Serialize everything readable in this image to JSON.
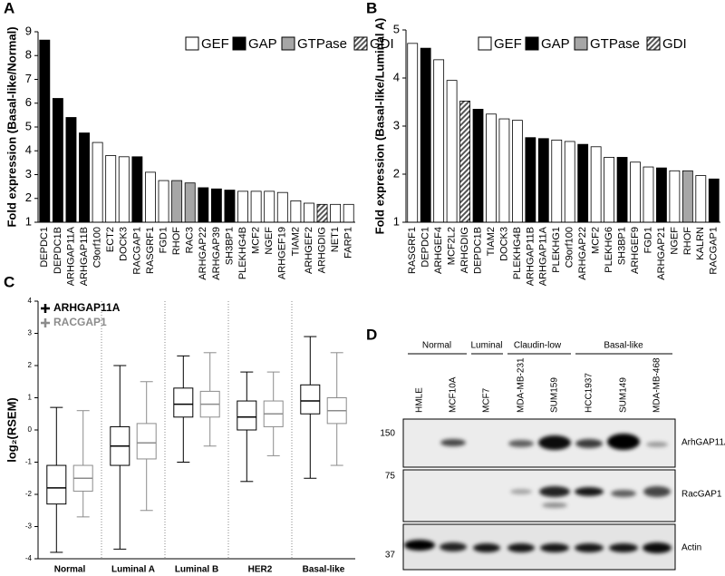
{
  "panel_labels": [
    "A",
    "B",
    "C",
    "D"
  ],
  "chart_data": [
    {
      "type": "bar",
      "ylabel": "Fold expression (Basal-like/Normal)",
      "ylim": [
        1,
        9
      ],
      "yticks": [
        1,
        2,
        3,
        4,
        5,
        6,
        7,
        8,
        9
      ],
      "grid": false,
      "categories": [
        "DEPDC1",
        "DEPDC1B",
        "ARHGAP11A",
        "ARHGAP11B",
        "C9orf100",
        "ECT2",
        "DOCK3",
        "RACGAP1",
        "RASGRF1",
        "FGD1",
        "RHOF",
        "RAC3",
        "ARHGAP22",
        "ARHGAP39",
        "SH3BP1",
        "PLEKHG4B",
        "MCF2",
        "NGEF",
        "ARHGEF19",
        "TIAM2",
        "ARHGEF2",
        "ARHGDIG",
        "NET1",
        "FARP1"
      ],
      "series": [
        {
          "name": "GEF",
          "color": "#ffffff",
          "values": [
            null,
            null,
            null,
            null,
            4.35,
            3.8,
            3.75,
            null,
            3.1,
            2.75,
            null,
            null,
            null,
            null,
            null,
            2.3,
            2.3,
            2.3,
            2.25,
            1.9,
            1.8,
            null,
            1.75,
            1.75
          ]
        },
        {
          "name": "GAP",
          "color": "#000000",
          "values": [
            8.65,
            6.2,
            5.4,
            4.75,
            null,
            null,
            null,
            3.75,
            null,
            null,
            null,
            null,
            2.45,
            2.4,
            2.35,
            null,
            null,
            null,
            null,
            null,
            null,
            null,
            null,
            null
          ]
        },
        {
          "name": "GTPase",
          "color": "#a6a6a6",
          "values": [
            null,
            null,
            null,
            null,
            null,
            null,
            null,
            null,
            null,
            null,
            2.75,
            2.65,
            null,
            null,
            null,
            null,
            null,
            null,
            null,
            null,
            null,
            null,
            null,
            null
          ]
        },
        {
          "name": "GDI",
          "color": "#555555",
          "pattern": "hatch",
          "values": [
            null,
            null,
            null,
            null,
            null,
            null,
            null,
            null,
            null,
            null,
            null,
            null,
            null,
            null,
            null,
            null,
            null,
            null,
            null,
            null,
            null,
            1.75,
            null,
            null
          ]
        }
      ]
    },
    {
      "type": "bar",
      "ylabel": "Fold expression (Basal-like/Luminal A)",
      "ylim": [
        1,
        5
      ],
      "yticks": [
        1,
        2,
        3,
        4,
        5
      ],
      "grid": false,
      "categories": [
        "RASGRF1",
        "DEPDC1",
        "ARHGEF4",
        "MCF2L2",
        "ARHGDIG",
        "DEPDC1B",
        "TIAM2",
        "DOCK3",
        "PLEKHG4B",
        "ARHGAP11B",
        "ARHGAP11A",
        "PLEKHG1",
        "C9orf100",
        "ARHGAP22",
        "MCF2",
        "PLEKHG6",
        "SH3BP1",
        "ARHGEF9",
        "FGD1",
        "ARHGAP21",
        "NGEF",
        "RHOF",
        "KALRN",
        "RACGAP1"
      ],
      "series": [
        {
          "name": "GEF",
          "color": "#ffffff",
          "values": [
            4.72,
            null,
            4.38,
            3.95,
            null,
            null,
            3.25,
            3.15,
            3.12,
            null,
            null,
            2.71,
            2.68,
            null,
            2.57,
            2.35,
            null,
            2.25,
            2.15,
            null,
            2.07,
            null,
            1.97,
            null
          ]
        },
        {
          "name": "GAP",
          "color": "#000000",
          "values": [
            null,
            4.62,
            null,
            null,
            null,
            3.35,
            null,
            null,
            null,
            2.76,
            2.74,
            null,
            null,
            2.62,
            null,
            null,
            2.35,
            null,
            null,
            2.13,
            null,
            null,
            null,
            1.9
          ]
        },
        {
          "name": "GTPase",
          "color": "#a6a6a6",
          "values": [
            null,
            null,
            null,
            null,
            null,
            null,
            null,
            null,
            null,
            null,
            null,
            null,
            null,
            null,
            null,
            null,
            null,
            null,
            null,
            null,
            null,
            2.07,
            null,
            null
          ]
        },
        {
          "name": "GDI",
          "color": "#555555",
          "pattern": "hatch",
          "values": [
            null,
            null,
            null,
            null,
            3.52,
            null,
            null,
            null,
            null,
            null,
            null,
            null,
            null,
            null,
            null,
            null,
            null,
            null,
            null,
            null,
            null,
            null,
            null,
            null
          ]
        }
      ]
    },
    {
      "type": "box",
      "ylabel": "log₂(RSEM)",
      "ylim": [
        -4,
        4
      ],
      "yticks": [
        -4,
        -3,
        -2,
        -1,
        0,
        1,
        2,
        3,
        4
      ],
      "categories": [
        "Normal",
        "Luminal A",
        "Luminal B",
        "HER2",
        "Basal-like"
      ],
      "series": [
        {
          "name": "ARHGAP11A",
          "color": "#000000",
          "values": [
            [
              -3.8,
              -2.3,
              -1.8,
              -1.1,
              0.7
            ],
            [
              -3.7,
              -1.1,
              -0.5,
              0.1,
              2.0
            ],
            [
              -1.0,
              0.4,
              0.8,
              1.3,
              2.3
            ],
            [
              -1.6,
              0.0,
              0.4,
              0.9,
              1.8
            ],
            [
              -1.5,
              0.5,
              0.9,
              1.4,
              2.9
            ]
          ]
        },
        {
          "name": "RACGAP1",
          "color": "#8c8c8c",
          "values": [
            [
              -2.7,
              -1.9,
              -1.5,
              -1.1,
              0.6
            ],
            [
              -2.5,
              -0.9,
              -0.4,
              0.2,
              1.5
            ],
            [
              -0.5,
              0.4,
              0.8,
              1.2,
              2.4
            ],
            [
              -0.8,
              0.1,
              0.5,
              0.9,
              1.8
            ],
            [
              -1.1,
              0.2,
              0.6,
              1.0,
              2.4
            ]
          ]
        }
      ]
    }
  ],
  "blot": {
    "groups": [
      "Normal",
      "Luminal",
      "Claudin-low",
      "Basal-like"
    ],
    "lanes": [
      "HMLE",
      "MCF10A",
      "MCF7",
      "MDA-MB-231",
      "SUM159",
      "HCC1937",
      "SUM149",
      "MDA-MB-468"
    ],
    "markers": [
      150,
      75,
      37
    ],
    "proteins": [
      "ArhGAP11A",
      "RacGAP1",
      "Actin"
    ]
  }
}
